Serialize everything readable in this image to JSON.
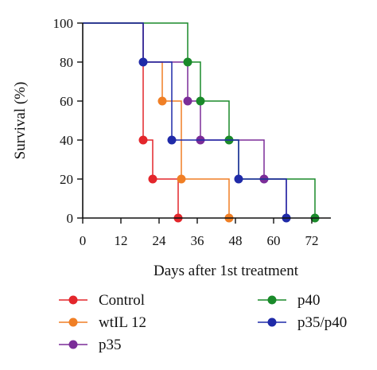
{
  "chart_data": {
    "type": "line",
    "subtype": "kaplan-meier-step",
    "xlabel": "Days after 1st treatment",
    "ylabel": "Survival (%)",
    "xlim": [
      0,
      78
    ],
    "ylim": [
      0,
      100
    ],
    "xticks": [
      0,
      12,
      24,
      36,
      48,
      60,
      72
    ],
    "yticks": [
      0,
      20,
      40,
      60,
      80,
      100
    ],
    "grid": false,
    "legend_position": "bottom",
    "series": [
      {
        "name": "Control",
        "color": "#e3262b",
        "steps": [
          [
            0,
            100
          ],
          [
            19,
            100
          ],
          [
            19,
            40
          ],
          [
            22,
            40
          ],
          [
            22,
            20
          ],
          [
            30,
            20
          ],
          [
            30,
            0
          ]
        ],
        "markers": [
          [
            19,
            40
          ],
          [
            22,
            20
          ],
          [
            30,
            0
          ]
        ]
      },
      {
        "name": "wtIL 12",
        "color": "#f07f25",
        "steps": [
          [
            0,
            100
          ],
          [
            19,
            100
          ],
          [
            19,
            80
          ],
          [
            25,
            80
          ],
          [
            25,
            60
          ],
          [
            31,
            60
          ],
          [
            31,
            20
          ],
          [
            46,
            20
          ],
          [
            46,
            0
          ]
        ],
        "markers": [
          [
            25,
            60
          ],
          [
            31,
            20
          ],
          [
            46,
            0
          ]
        ]
      },
      {
        "name": "p35",
        "color": "#7b2d98",
        "steps": [
          [
            0,
            100
          ],
          [
            19,
            100
          ],
          [
            19,
            80
          ],
          [
            33,
            80
          ],
          [
            33,
            60
          ],
          [
            37,
            60
          ],
          [
            37,
            40
          ],
          [
            57,
            40
          ],
          [
            57,
            20
          ],
          [
            64,
            20
          ],
          [
            64,
            0
          ]
        ],
        "markers": [
          [
            33,
            60
          ],
          [
            37,
            40
          ],
          [
            57,
            20
          ]
        ]
      },
      {
        "name": "p40",
        "color": "#1a8a2a",
        "steps": [
          [
            0,
            100
          ],
          [
            33,
            100
          ],
          [
            33,
            80
          ],
          [
            37,
            80
          ],
          [
            37,
            60
          ],
          [
            46,
            60
          ],
          [
            46,
            40
          ],
          [
            49,
            40
          ],
          [
            49,
            20
          ],
          [
            73,
            20
          ],
          [
            73,
            0
          ]
        ],
        "markers": [
          [
            33,
            80
          ],
          [
            37,
            60
          ],
          [
            46,
            40
          ],
          [
            73,
            0
          ]
        ]
      },
      {
        "name": "p35/p40",
        "color": "#1f2aa8",
        "steps": [
          [
            0,
            100
          ],
          [
            19,
            100
          ],
          [
            19,
            80
          ],
          [
            28,
            80
          ],
          [
            28,
            40
          ],
          [
            49,
            40
          ],
          [
            49,
            20
          ],
          [
            64,
            20
          ],
          [
            64,
            0
          ]
        ],
        "markers": [
          [
            19,
            80
          ],
          [
            28,
            40
          ],
          [
            49,
            20
          ],
          [
            64,
            0
          ]
        ]
      }
    ],
    "legend_order": [
      "Control",
      "wtIL 12",
      "p35",
      "p40",
      "p35/p40"
    ]
  }
}
